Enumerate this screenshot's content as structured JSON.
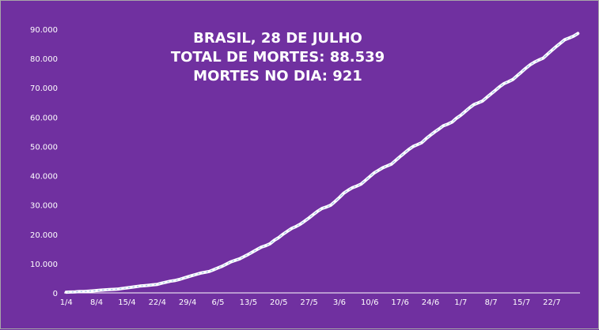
{
  "chart_data": {
    "type": "line",
    "title_lines": [
      "BRASIL,  28 DE JULHO",
      "TOTAL DE MORTES: 88.539",
      "MORTES NO DIA: 921"
    ],
    "xlabel": "",
    "ylabel": "",
    "ylim": [
      0,
      90000
    ],
    "yticks": [
      "0",
      "10.000",
      "20.000",
      "30.000",
      "40.000",
      "50.000",
      "60.000",
      "70.000",
      "80.000",
      "90.000"
    ],
    "xticks": [
      "1/4",
      "8/4",
      "15/4",
      "22/4",
      "29/4",
      "6/5",
      "13/5",
      "20/5",
      "27/5",
      "3/6",
      "10/6",
      "17/6",
      "24/6",
      "1/7",
      "8/7",
      "15/7",
      "22/7"
    ],
    "grid": false,
    "line_color": "#ffffff",
    "background_color": "#7030a0",
    "series": [
      {
        "x": [
          "1/4",
          "2/4",
          "3/4",
          "4/4",
          "5/4",
          "6/4",
          "7/4",
          "8/4",
          "9/4",
          "10/4",
          "11/4",
          "12/4",
          "13/4",
          "14/4",
          "15/4",
          "16/4",
          "17/4",
          "18/4",
          "19/4",
          "20/4",
          "21/4",
          "22/4",
          "23/4",
          "24/4",
          "25/4",
          "26/4",
          "27/4",
          "28/4",
          "29/4",
          "30/4",
          "1/5",
          "2/5",
          "3/5",
          "4/5",
          "5/5",
          "6/5",
          "7/5",
          "8/5",
          "9/5",
          "10/5",
          "11/5",
          "12/5",
          "13/5",
          "14/5",
          "15/5",
          "16/5",
          "17/5",
          "18/5",
          "19/5",
          "20/5",
          "21/5",
          "22/5",
          "23/5",
          "24/5",
          "25/5",
          "26/5",
          "27/5",
          "28/5",
          "29/5",
          "30/5",
          "31/5",
          "1/6",
          "2/6",
          "3/6",
          "4/6",
          "5/6",
          "6/6",
          "7/6",
          "8/6",
          "9/6",
          "10/6",
          "11/6",
          "12/6",
          "13/6",
          "14/6",
          "15/6",
          "16/6",
          "17/6",
          "18/6",
          "19/6",
          "20/6",
          "21/6",
          "22/6",
          "23/6",
          "24/6",
          "25/6",
          "26/6",
          "27/6",
          "28/6",
          "29/6",
          "30/6",
          "1/7",
          "2/7",
          "3/7",
          "4/7",
          "5/7",
          "6/7",
          "7/7",
          "8/7",
          "9/7",
          "10/7",
          "11/7",
          "12/7",
          "13/7",
          "14/7",
          "15/7",
          "16/7",
          "17/7",
          "18/7",
          "19/7",
          "20/7",
          "21/7",
          "22/7",
          "23/7",
          "24/7",
          "25/7",
          "26/7",
          "27/7",
          "28/7"
        ],
        "values": [
          241,
          299,
          359,
          445,
          486,
          553,
          667,
          800,
          941,
          1057,
          1124,
          1223,
          1328,
          1532,
          1736,
          1924,
          2141,
          2347,
          2462,
          2575,
          2741,
          2906,
          3313,
          3670,
          3985,
          4205,
          4543,
          5017,
          5466,
          5901,
          6329,
          6750,
          7025,
          7321,
          7921,
          8536,
          9146,
          9897,
          10627,
          11123,
          11653,
          12400,
          13149,
          13993,
          14817,
          15633,
          16118,
          16792,
          17971,
          18859,
          20047,
          21048,
          22013,
          22666,
          23473,
          24512,
          25598,
          26754,
          27878,
          28834,
          29314,
          29937,
          31199,
          32548,
          34021,
          35026,
          35930,
          36455,
          37134,
          38406,
          39680,
          40919,
          41828,
          42720,
          43332,
          43959,
          45241,
          46510,
          47748,
          48954,
          49976,
          50617,
          51271,
          52645,
          53830,
          54971,
          55961,
          57070,
          57622,
          58314,
          59594,
          60632,
          61884,
          63174,
          64265,
          64867,
          65487,
          66741,
          67964,
          69184,
          70398,
          71469,
          72100,
          72833,
          74133,
          75366,
          76688,
          77851,
          78772,
          79488,
          80120,
          81487,
          82771,
          84082,
          85238,
          86449,
          87004,
          87618,
          88539
        ]
      }
    ]
  }
}
